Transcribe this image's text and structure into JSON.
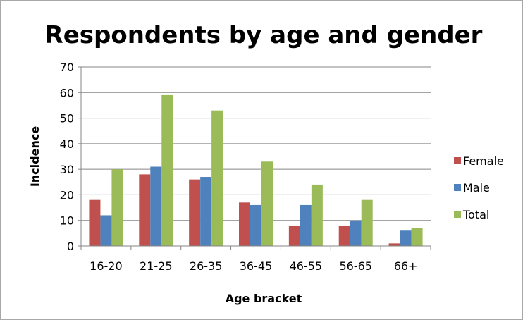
{
  "chart_data": {
    "type": "bar",
    "title": "Respondents by age and gender",
    "xlabel": "Age bracket",
    "ylabel": "Incidence",
    "categories": [
      "16-20",
      "21-25",
      "26-35",
      "36-45",
      "46-55",
      "56-65",
      "66+"
    ],
    "series": [
      {
        "name": "Female",
        "color": "#c0504d",
        "values": [
          18,
          28,
          26,
          17,
          8,
          8,
          1
        ]
      },
      {
        "name": "Male",
        "color": "#4f81bd",
        "values": [
          12,
          31,
          27,
          16,
          16,
          10,
          6
        ]
      },
      {
        "name": "Total",
        "color": "#9bbb59",
        "values": [
          30,
          59,
          53,
          33,
          24,
          18,
          7
        ]
      }
    ],
    "ylim": [
      0,
      70
    ],
    "yticks": [
      "0",
      "10",
      "20",
      "30",
      "40",
      "50",
      "60",
      "70"
    ],
    "grid": true,
    "legend_position": "right"
  }
}
